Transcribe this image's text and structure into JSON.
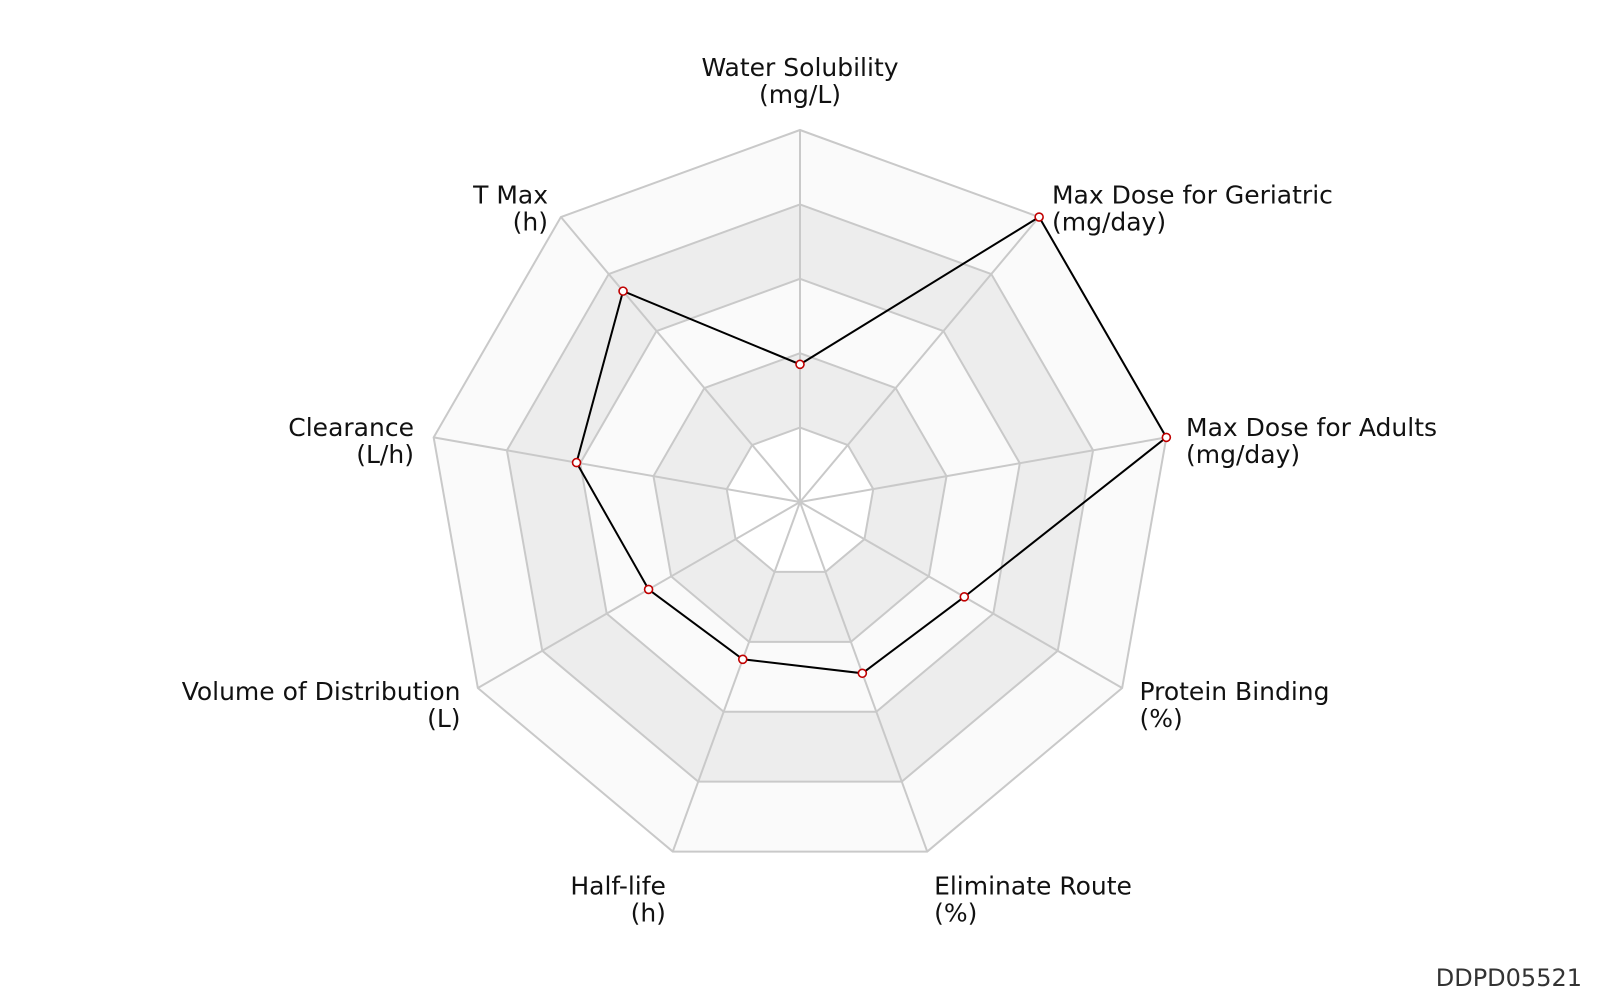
{
  "chart_data": {
    "type": "radar",
    "axes": [
      {
        "name": "Water Solubility",
        "unit": "(mg/L)"
      },
      {
        "name": "Max Dose for Geriatric",
        "unit": "(mg/day)"
      },
      {
        "name": "Max Dose for Adults",
        "unit": "(mg/day)"
      },
      {
        "name": "Protein Binding",
        "unit": "(%)"
      },
      {
        "name": "Eliminate Route",
        "unit": "(%)"
      },
      {
        "name": "Half-life",
        "unit": "(h)"
      },
      {
        "name": "Volume of Distribution",
        "unit": "(L)"
      },
      {
        "name": "Clearance",
        "unit": "(L/h)"
      },
      {
        "name": "T Max",
        "unit": "(h)"
      }
    ],
    "rings": 5,
    "ring_max": 1.0,
    "band_colors": [
      "#ffffff",
      "#ededed",
      "#fafafa",
      "#ededed",
      "#fafafa"
    ],
    "series": [
      {
        "values": [
          0.37,
          1.0,
          1.0,
          0.51,
          0.49,
          0.45,
          0.47,
          0.61,
          0.74
        ],
        "line_color": "#000000",
        "marker_color": "#c00000"
      }
    ],
    "grid": true
  },
  "watermark": "DDPD05521"
}
